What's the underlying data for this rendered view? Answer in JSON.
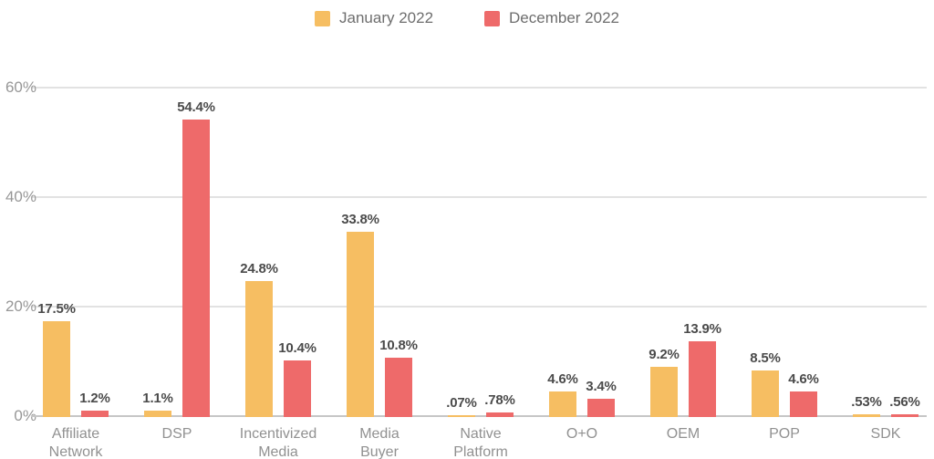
{
  "legend": {
    "items": [
      {
        "label": "January 2022"
      },
      {
        "label": "December 2022"
      }
    ]
  },
  "colors": {
    "january": "#F6BE62",
    "december": "#EE6A6A",
    "gridline": "#E2E2E2",
    "baseline": "#C6C6C6",
    "value_text": "#4B4B4B",
    "muted_text": "#919191",
    "legend_text": "#6E6E6E"
  },
  "chart_data": {
    "type": "bar",
    "title": "",
    "xlabel": "",
    "ylabel": "",
    "categories": [
      "Affiliate Network",
      "DSP",
      "Incentivized Media",
      "Media Buyer",
      "Native Platform",
      "O+O",
      "OEM",
      "POP",
      "SDK"
    ],
    "category_lines": [
      [
        "Affiliate",
        "Network"
      ],
      [
        "DSP"
      ],
      [
        "Incentivized",
        "Media"
      ],
      [
        "Media",
        "Buyer"
      ],
      [
        "Native",
        "Platform"
      ],
      [
        "O+O"
      ],
      [
        "OEM"
      ],
      [
        "POP"
      ],
      [
        "SDK"
      ]
    ],
    "series": [
      {
        "name": "January 2022",
        "color": "#F6BE62",
        "values": [
          17.5,
          1.1,
          24.8,
          33.8,
          0.07,
          4.6,
          9.2,
          8.5,
          0.53
        ],
        "labels": [
          "17.5%",
          "1.1%",
          "24.8%",
          "33.8%",
          ".07%",
          "4.6%",
          "9.2%",
          "8.5%",
          ".53%"
        ]
      },
      {
        "name": "December 2022",
        "color": "#EE6A6A",
        "values": [
          1.2,
          54.4,
          10.4,
          10.8,
          0.78,
          3.4,
          13.9,
          4.6,
          0.56
        ],
        "labels": [
          "1.2%",
          "54.4%",
          "10.4%",
          "10.8%",
          ".78%",
          "3.4%",
          "13.9%",
          "4.6%",
          ".56%"
        ]
      }
    ],
    "ylim": [
      0,
      60
    ],
    "yticks": [
      {
        "value": 0,
        "label": "0%"
      },
      {
        "value": 20,
        "label": "20%"
      },
      {
        "value": 40,
        "label": "40%"
      },
      {
        "value": 60,
        "label": "60%"
      }
    ],
    "grid": "horizontal",
    "legend_position": "top"
  }
}
